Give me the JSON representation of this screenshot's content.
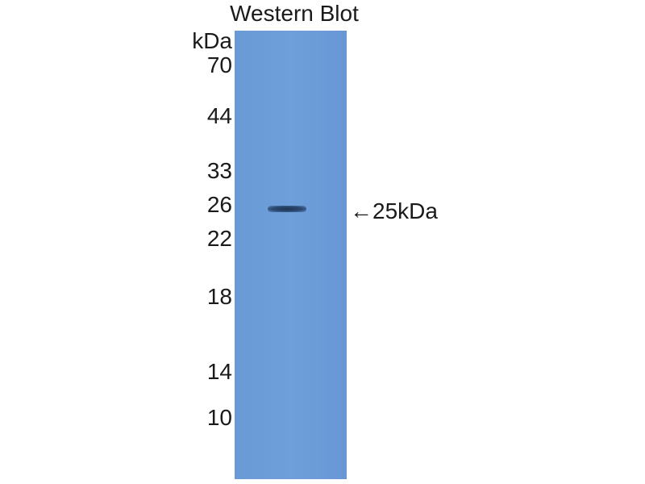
{
  "title": "Western Blot",
  "unit_label": "kDa",
  "markers": [
    "70",
    "44",
    "33",
    "26",
    "22",
    "18",
    "14",
    "10"
  ],
  "band_annotation": "←25kDa",
  "colors": {
    "membrane": "#6e9ed9",
    "band": "#2c4a72"
  }
}
